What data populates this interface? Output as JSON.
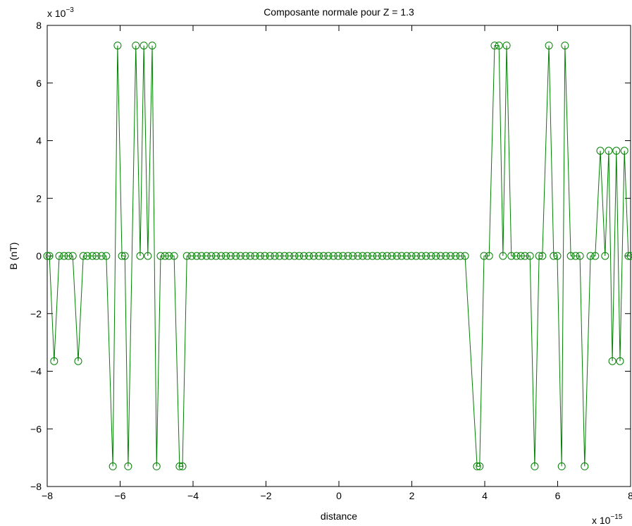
{
  "chart_data": {
    "type": "line",
    "title": "Composante normale pour Z = 1.3",
    "x_label": "distance",
    "y_label": "B (nT)",
    "x_multiplier": {
      "base": "x 10",
      "exponent": "−15"
    },
    "y_multiplier": {
      "base": "x 10",
      "exponent": "−3"
    },
    "xlim": [
      -8,
      8
    ],
    "ylim": [
      -8,
      8
    ],
    "xticks": [
      {
        "value": -8,
        "label": "−8"
      },
      {
        "value": -6,
        "label": "−6"
      },
      {
        "value": -4,
        "label": "−4"
      },
      {
        "value": -2,
        "label": "−2"
      },
      0,
      2,
      4,
      6,
      8
    ],
    "yticks": [
      {
        "value": -8,
        "label": "−8"
      },
      {
        "value": -6,
        "label": "−6"
      },
      {
        "value": -4,
        "label": "−4"
      },
      {
        "value": -2,
        "label": "−2"
      },
      0,
      2,
      4,
      6,
      8
    ],
    "grid": false,
    "marker": "circle",
    "x": [
      -8.0,
      -7.94,
      -7.81,
      -7.67,
      -7.54,
      -7.42,
      -7.3,
      -7.15,
      -7.01,
      -6.9,
      -6.76,
      -6.65,
      -6.51,
      -6.38,
      -6.2,
      -6.07,
      -5.95,
      -5.87,
      -5.78,
      -5.57,
      -5.45,
      -5.35,
      -5.24,
      -5.12,
      -5.0,
      -4.89,
      -4.77,
      -4.66,
      -4.52,
      -4.37,
      -4.29,
      -4.17,
      -4.04,
      -3.9,
      -3.77,
      -3.63,
      -3.5,
      -3.37,
      -3.23,
      -3.1,
      -2.97,
      -2.83,
      -2.7,
      -2.56,
      -2.43,
      -2.3,
      -2.16,
      -2.03,
      -1.89,
      -1.76,
      -1.63,
      -1.49,
      -1.36,
      -1.22,
      -1.09,
      -0.96,
      -0.82,
      -0.69,
      -0.55,
      -0.42,
      -0.29,
      -0.15,
      -0.02,
      0.11,
      0.25,
      0.38,
      0.52,
      0.65,
      0.78,
      0.92,
      1.05,
      1.19,
      1.32,
      1.45,
      1.59,
      1.72,
      1.86,
      1.99,
      2.12,
      2.26,
      2.39,
      2.53,
      2.66,
      2.79,
      2.93,
      3.06,
      3.2,
      3.33,
      3.46,
      3.79,
      3.86,
      3.98,
      4.12,
      4.27,
      4.39,
      4.5,
      4.6,
      4.73,
      4.87,
      4.99,
      5.1,
      5.24,
      5.37,
      5.49,
      5.58,
      5.76,
      5.89,
      5.99,
      6.11,
      6.2,
      6.36,
      6.49,
      6.61,
      6.74,
      6.9,
      7.03,
      7.17,
      7.3,
      7.4,
      7.5,
      7.61,
      7.71,
      7.83,
      7.94,
      8.0
    ],
    "series": [
      {
        "name": "B",
        "color": "#008000",
        "values": [
          0,
          0,
          -3.65,
          0,
          0,
          0,
          0,
          -3.65,
          0,
          0,
          0,
          0,
          0,
          0,
          -7.3,
          7.3,
          0,
          0,
          -7.3,
          7.3,
          0,
          7.3,
          0,
          7.3,
          -7.3,
          0,
          0,
          0,
          0,
          -7.3,
          -7.3,
          0,
          0,
          0,
          0,
          0,
          0,
          0,
          0,
          0,
          0,
          0,
          0,
          0,
          0,
          0,
          0,
          0,
          0,
          0,
          0,
          0,
          0,
          0,
          0,
          0,
          0,
          0,
          0,
          0,
          0,
          0,
          0,
          0,
          0,
          0,
          0,
          0,
          0,
          0,
          0,
          0,
          0,
          0,
          0,
          0,
          0,
          0,
          0,
          0,
          0,
          0,
          0,
          0,
          0,
          0,
          0,
          0,
          0,
          -7.3,
          -7.3,
          0,
          0,
          7.3,
          7.3,
          0,
          7.3,
          0,
          0,
          0,
          0,
          0,
          -7.3,
          0,
          0,
          7.3,
          0,
          0,
          -7.3,
          7.3,
          0,
          0,
          0,
          -7.3,
          0,
          0,
          3.65,
          0,
          3.65,
          -3.65,
          3.65,
          -3.65,
          3.65,
          0,
          0
        ]
      }
    ]
  }
}
